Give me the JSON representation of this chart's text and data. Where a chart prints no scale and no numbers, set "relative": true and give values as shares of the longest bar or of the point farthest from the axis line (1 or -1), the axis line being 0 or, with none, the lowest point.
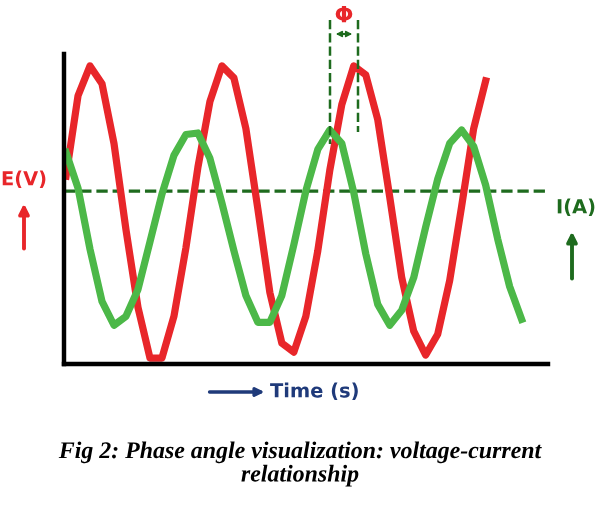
{
  "chart_data": {
    "type": "line",
    "relative": true,
    "categories": [
      null,
      null,
      null,
      null,
      null,
      null,
      null,
      null,
      null,
      null,
      null,
      null,
      null,
      null,
      null,
      null,
      null,
      null,
      null,
      null,
      null,
      null,
      null,
      null,
      null,
      null,
      null,
      null,
      null,
      null,
      null,
      null,
      null,
      null,
      null,
      null,
      null,
      null,
      null
    ],
    "series": [
      {
        "color": "#e8262a",
        "values": [
          0.63,
          0.9,
          1,
          0.94,
          0.74,
          0.45,
          0.19,
          0.02,
          0.02,
          0.16,
          0.39,
          0.66,
          0.88,
          1,
          0.96,
          0.79,
          0.52,
          0.24,
          0.07,
          0.04,
          0.16,
          0.38,
          0.65,
          0.87,
          1,
          0.97,
          0.82,
          0.56,
          0.29,
          0.11,
          0.03,
          0.1,
          0.28,
          0.53,
          0.79,
          0.95,
          null,
          null,
          null
        ]
      },
      {
        "color": "#4cb848",
        "values": [
          0.71,
          0.59,
          0.385,
          0.21,
          0.13,
          0.16,
          0.25,
          0.41,
          0.57,
          0.7,
          0.77,
          0.775,
          0.69,
          0.54,
          0.38,
          0.23,
          0.14,
          0.14,
          0.23,
          0.4,
          0.58,
          0.72,
          0.785,
          0.74,
          0.575,
          0.37,
          0.2,
          0.13,
          0.18,
          0.29,
          0.46,
          0.62,
          0.74,
          0.785,
          0.73,
          0.6,
          0.42,
          0.26,
          0.15
        ]
      }
    ],
    "ylabel": "E(V)",
    "y2label": "I(A)",
    "xlabel": "Time (s)",
    "ref_lines": [
      {
        "axis": "y",
        "value": 0.58,
        "color": "#1e6b1e",
        "line_style": "dashed"
      }
    ],
    "annotations": [
      "Φ",
      "Fig 2: Phase angle visualization: voltage-current relationship"
    ],
    "line_style": "solid",
    "marker": "none",
    "legend": false
  }
}
